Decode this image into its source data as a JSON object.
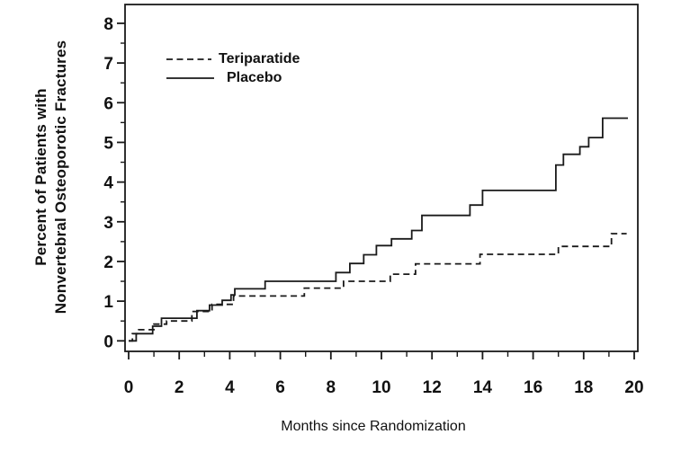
{
  "chart_data": {
    "type": "line",
    "subtype": "step-kaplan-meier",
    "title": "",
    "xlabel": "Months since Randomization",
    "ylabel_line1": "Percent of Patients with",
    "ylabel_line2": "Nonvertebral Osteoporotic Fractures",
    "xlim": [
      0,
      20
    ],
    "ylim": [
      0,
      8
    ],
    "grid": false,
    "legend_position": "top-left-inside",
    "x_major_ticks": [
      0,
      2,
      4,
      6,
      8,
      10,
      12,
      14,
      16,
      18,
      20
    ],
    "x_minor_ticks": [
      1,
      3,
      5,
      7,
      9,
      11,
      13,
      15,
      17,
      19
    ],
    "y_major_ticks": [
      0,
      1,
      2,
      3,
      4,
      5,
      6,
      7,
      8
    ],
    "y_minor_ticks": [
      0.5,
      1.5,
      2.5,
      3.5,
      4.5,
      5.5,
      6.5,
      7.5
    ],
    "series": [
      {
        "name": "Teriparatide",
        "line_style": "dashed",
        "color": "#1a1a1a",
        "points": [
          [
            0,
            0
          ],
          [
            0.15,
            0.18
          ],
          [
            0.4,
            0.28
          ],
          [
            1.0,
            0.42
          ],
          [
            1.5,
            0.5
          ],
          [
            2.5,
            0.74
          ],
          [
            3.3,
            0.92
          ],
          [
            4.15,
            1.13
          ],
          [
            6.95,
            1.33
          ],
          [
            8.5,
            1.5
          ],
          [
            10.35,
            1.68
          ],
          [
            11.35,
            1.94
          ],
          [
            13.9,
            2.18
          ],
          [
            17.0,
            2.38
          ],
          [
            19.1,
            2.7
          ],
          [
            19.7,
            2.7
          ]
        ]
      },
      {
        "name": "Placebo",
        "line_style": "solid",
        "color": "#1a1a1a",
        "points": [
          [
            0,
            0
          ],
          [
            0.3,
            0.18
          ],
          [
            0.95,
            0.37
          ],
          [
            1.3,
            0.57
          ],
          [
            2.7,
            0.76
          ],
          [
            3.2,
            0.9
          ],
          [
            3.7,
            1.02
          ],
          [
            4.05,
            1.16
          ],
          [
            4.2,
            1.31
          ],
          [
            5.4,
            1.5
          ],
          [
            8.2,
            1.72
          ],
          [
            8.75,
            1.95
          ],
          [
            9.3,
            2.17
          ],
          [
            9.8,
            2.4
          ],
          [
            10.4,
            2.57
          ],
          [
            11.2,
            2.78
          ],
          [
            11.6,
            3.16
          ],
          [
            13.5,
            3.42
          ],
          [
            14.0,
            3.79
          ],
          [
            16.9,
            4.43
          ],
          [
            17.2,
            4.7
          ],
          [
            17.85,
            4.89
          ],
          [
            18.2,
            5.12
          ],
          [
            18.75,
            5.61
          ],
          [
            19.75,
            5.61
          ]
        ]
      }
    ]
  },
  "colors": {
    "line": "#1a1a1a",
    "background": "#ffffff",
    "text": "#111111"
  }
}
